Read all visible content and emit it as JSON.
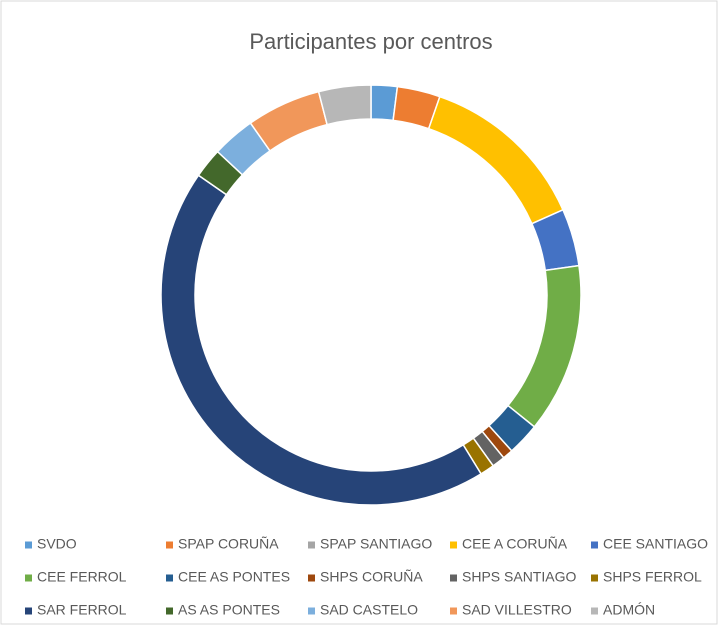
{
  "chart_data": {
    "type": "donut",
    "title": "Participantes por centros",
    "categories": [
      "SVDO",
      "SPAP CORUÑA",
      "SPAP SANTIAGO",
      "CEE A CORUÑA",
      "CEE SANTIAGO",
      "CEE FERROL",
      "CEE AS PONTES",
      "SHPS CORUÑA",
      "SHPS SANTIAGO",
      "SHPS FERROL",
      "SAR FERROL",
      "AS AS PONTES",
      "SAD CASTELO",
      "SAD VILLESTRO",
      "ADMÓN"
    ],
    "values": [
      2,
      3.3,
      0,
      13,
      4.4,
      13,
      2.5,
      0.8,
      1,
      1.1,
      43.3,
      2.3,
      3.3,
      5.7,
      4
    ],
    "colors": [
      "#5b9bd5",
      "#ed7d31",
      "#a5a5a5",
      "#ffc000",
      "#4472c4",
      "#70ad47",
      "#255e91",
      "#9e480e",
      "#636363",
      "#997300",
      "#264478",
      "#43682b",
      "#7cafdd",
      "#f1975a",
      "#b7b7b7"
    ],
    "legend": "bottom"
  }
}
